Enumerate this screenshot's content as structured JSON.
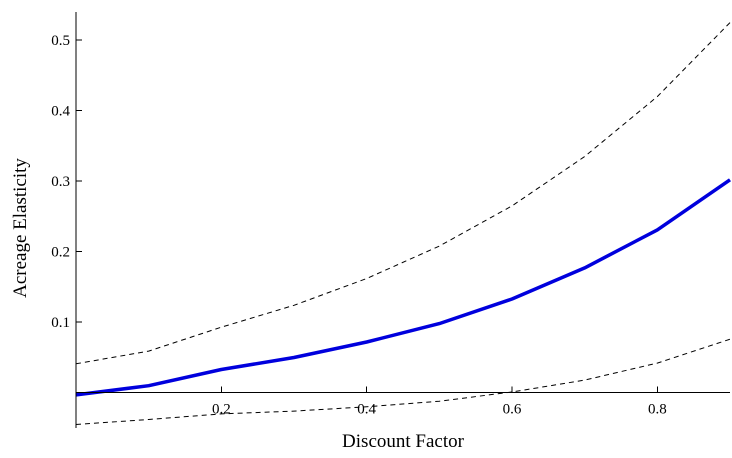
{
  "chart_data": {
    "type": "line",
    "title": "",
    "xlabel": "Discount Factor",
    "ylabel": "Acreage Elasticity",
    "xlim": [
      0,
      0.9
    ],
    "ylim": [
      -0.05,
      0.54
    ],
    "grid": false,
    "x_ticks": [
      0.2,
      0.4,
      0.6,
      0.8
    ],
    "x_tick_labels": [
      "0.2",
      "0.4",
      "0.6",
      "0.8"
    ],
    "y_ticks": [
      0.1,
      0.2,
      0.3,
      0.4,
      0.5
    ],
    "y_tick_labels": [
      "0.1",
      "0.2",
      "0.3",
      "0.4",
      "0.5"
    ],
    "x": [
      0,
      0.1,
      0.2,
      0.3,
      0.4,
      0.5,
      0.6,
      0.7,
      0.8,
      0.9
    ],
    "series": [
      {
        "role": "estimate",
        "style": "solid",
        "color": "#0000dd",
        "values": [
          -0.003,
          0.01,
          0.033,
          0.05,
          0.072,
          0.098,
          0.133,
          0.177,
          0.231,
          0.302
        ]
      },
      {
        "role": "upper-bound",
        "style": "dashed",
        "color": "#000000",
        "values": [
          0.041,
          0.059,
          0.093,
          0.124,
          0.162,
          0.208,
          0.265,
          0.335,
          0.42,
          0.525
        ]
      },
      {
        "role": "lower-bound",
        "style": "dashed",
        "color": "#000000",
        "values": [
          -0.045,
          -0.038,
          -0.03,
          -0.026,
          -0.02,
          -0.012,
          0.001,
          0.018,
          0.042,
          0.076
        ]
      }
    ]
  }
}
